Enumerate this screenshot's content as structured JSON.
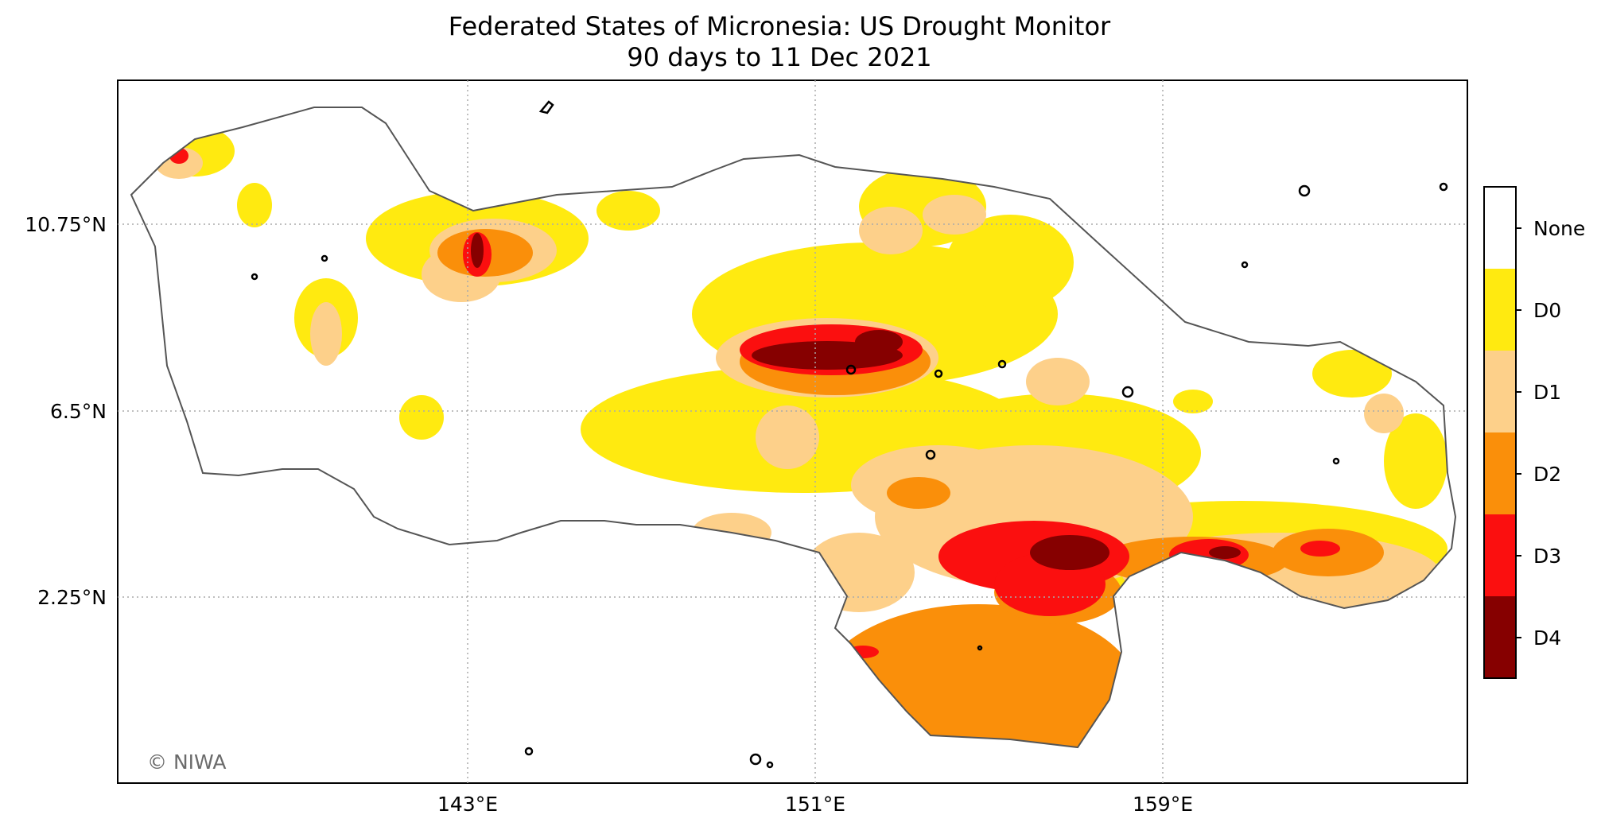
{
  "title": "Federated States of Micronesia: US Drought Monitor",
  "subtitle": "90 days to 11 Dec 2021",
  "credit": "© NIWA",
  "x_ticks": [
    "143°E",
    "151°E",
    "159°E"
  ],
  "y_ticks": [
    "10.75°N",
    "6.5°N",
    "2.25°N"
  ],
  "legend": [
    {
      "label": "None",
      "color": "#ffffff"
    },
    {
      "label": "D0",
      "color": "#ffea10"
    },
    {
      "label": "D1",
      "color": "#fdd08a"
    },
    {
      "label": "D2",
      "color": "#fa8f0a"
    },
    {
      "label": "D3",
      "color": "#fb0f0f"
    },
    {
      "label": "D4",
      "color": "#860000"
    }
  ],
  "colors": {
    "boundary": "#555555",
    "gridline": "#aaaaaa",
    "land": "#000000"
  }
}
